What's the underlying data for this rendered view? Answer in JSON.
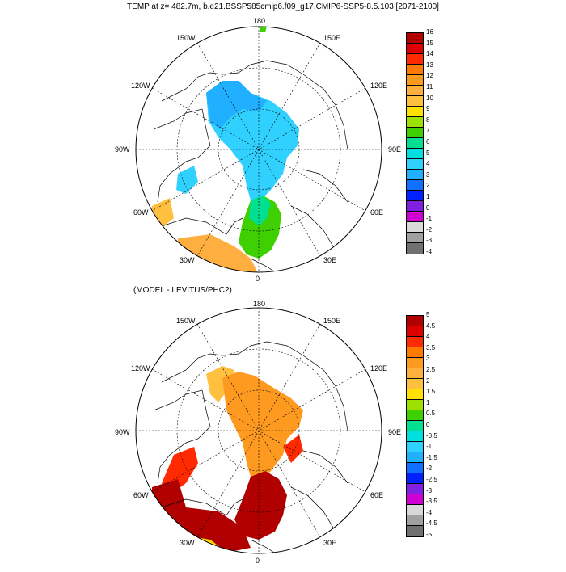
{
  "title": "TEMP at z= 482.7m, b.e21.BSSP585cmip6.f09_g17.CMIP6-SSP5-8.5.103 [2071-2100]",
  "subtitle": "(MODEL - LEVITUS/PHC2)",
  "map1": {
    "labels": {
      "top": "180",
      "bottom": "0",
      "left": "90W",
      "right": "90E",
      "ul": "150W",
      "ur": "150E",
      "l2": "120W",
      "r2": "120E",
      "ll": "60W",
      "lr": "60E",
      "bl": "30W",
      "br": "30E"
    }
  },
  "map2": {
    "labels": {
      "top": "180",
      "bottom": "0",
      "left": "90W",
      "right": "90E",
      "ul": "150W",
      "ur": "150E",
      "l2": "120W",
      "r2": "120E",
      "ll": "60W",
      "lr": "60E",
      "bl": "30W",
      "br": "30E"
    }
  },
  "colorbar1": {
    "ticks": [
      "16",
      "15",
      "14",
      "13",
      "12",
      "11",
      "10",
      "9",
      "8",
      "7",
      "6",
      "5",
      "4",
      "3",
      "2",
      "1",
      "0",
      "-1",
      "-2",
      "-3",
      "-4"
    ],
    "colors": [
      "#b00000",
      "#dd0000",
      "#ff2a00",
      "#ff7a00",
      "#ff9a20",
      "#ffae40",
      "#ffc040",
      "#ffe000",
      "#9ee000",
      "#3ed000",
      "#00e090",
      "#00e0e0",
      "#30d0ff",
      "#20b0ff",
      "#1070ff",
      "#0020ff",
      "#8020e0",
      "#d000d0",
      "#d8d8d8",
      "#a0a0a0",
      "#707070"
    ]
  },
  "colorbar2": {
    "ticks": [
      "5",
      "4.5",
      "4",
      "3.5",
      "3",
      "2.5",
      "2",
      "1.5",
      "1",
      "0.5",
      "0",
      "-0.5",
      "-1",
      "-1.5",
      "-2",
      "-2.5",
      "-3",
      "-3.5",
      "-4",
      "-4.5",
      "-5"
    ],
    "colors": [
      "#b00000",
      "#dd0000",
      "#ff2a00",
      "#ff7a00",
      "#ff9a20",
      "#ffae40",
      "#ffc040",
      "#ffe000",
      "#9ee000",
      "#3ed000",
      "#00e090",
      "#00e0e0",
      "#30d0ff",
      "#20b0ff",
      "#1070ff",
      "#0020ff",
      "#8020e0",
      "#d000d0",
      "#d8d8d8",
      "#a0a0a0",
      "#707070"
    ]
  }
}
